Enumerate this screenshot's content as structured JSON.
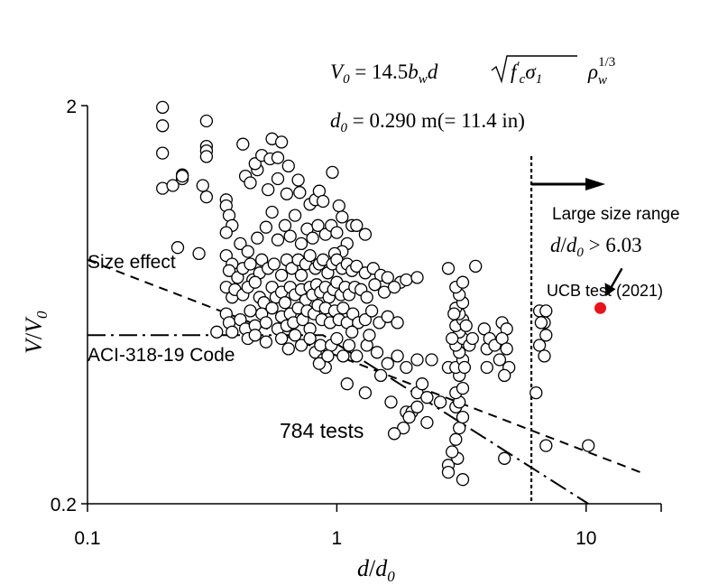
{
  "chart_data": {
    "type": "scatter",
    "x_scale": "log",
    "y_scale": "log",
    "xlim": [
      0.1,
      20
    ],
    "ylim": [
      0.2,
      2
    ],
    "x_ticks": [
      {
        "value": 0.1,
        "label": "0.1"
      },
      {
        "value": 1,
        "label": "1"
      },
      {
        "value": 10,
        "label": "10"
      }
    ],
    "y_ticks": [
      {
        "value": 0.2,
        "label": "0.2"
      },
      {
        "value": 2,
        "label": "2"
      }
    ],
    "xlabel": {
      "main": "d",
      "sep": "/",
      "den": "d",
      "sub": "0"
    },
    "ylabel": {
      "main": "V",
      "sep": "/",
      "den": "V",
      "sub": "0"
    },
    "grid": false,
    "formula_line1": {
      "lhs": "V",
      "lhs_sub": "0",
      "eq": " = 14.5",
      "b": "b",
      "b_sub": "w",
      "d": "d",
      "root": "f",
      "root_prime": "′",
      "root_sub": "c",
      "sigma": "σ",
      "sigma_sub": "1",
      "rho": "ρ",
      "rho_sub": "w",
      "rho_exp": "1/3"
    },
    "formula_line2": {
      "lhs": "d",
      "lhs_sub": "0",
      "rhs": " = 0.290 m(= 11.4 in)"
    },
    "annotations": {
      "large_size_range": "Large size range",
      "threshold": {
        "lhs": "d",
        "sep": "/",
        "den": "d",
        "sub": "0",
        "rhs": " > 6.03"
      },
      "ucb_test": "UCB test (2021)",
      "size_effect": "Size effect",
      "aci_code": "ACI-318-19 Code",
      "test_count": "784 tests"
    },
    "threshold_x": 6.03,
    "ucb_point": {
      "x": 11.4,
      "y": 0.62,
      "color": "#e8141b"
    },
    "size_effect_line": {
      "x": [
        0.1,
        16.5
      ],
      "y": [
        0.82,
        0.24
      ]
    },
    "aci_code_line": {
      "x": [
        0.1,
        0.88,
        10.2
      ],
      "y": [
        0.53,
        0.53,
        0.2
      ]
    },
    "points": [
      [
        0.2,
        1.98
      ],
      [
        0.2,
        1.78
      ],
      [
        0.2,
        1.52
      ],
      [
        0.2,
        1.24
      ],
      [
        0.22,
        1.26
      ],
      [
        0.24,
        1.34
      ],
      [
        0.24,
        1.31
      ],
      [
        0.23,
        0.88
      ],
      [
        0.3,
        1.83
      ],
      [
        0.3,
        1.58
      ],
      [
        0.3,
        1.54
      ],
      [
        0.3,
        1.49
      ],
      [
        0.29,
        1.26
      ],
      [
        0.3,
        1.18
      ],
      [
        0.28,
        0.85
      ],
      [
        0.24,
        1.33
      ],
      [
        0.42,
        1.6
      ],
      [
        0.43,
        1.33
      ],
      [
        0.45,
        1.28
      ],
      [
        0.48,
        1.38
      ],
      [
        0.47,
        1.43
      ],
      [
        0.5,
        1.5
      ],
      [
        0.54,
        1.47
      ],
      [
        0.55,
        1.65
      ],
      [
        0.58,
        1.48
      ],
      [
        0.6,
        1.62
      ],
      [
        0.64,
        1.41
      ],
      [
        0.58,
        1.31
      ],
      [
        0.53,
        1.23
      ],
      [
        0.7,
        1.3
      ],
      [
        0.71,
        1.21
      ],
      [
        0.63,
        1.2
      ],
      [
        0.78,
        1.13
      ],
      [
        0.82,
        1.16
      ],
      [
        0.85,
        1.22
      ],
      [
        0.96,
        1.36
      ],
      [
        0.88,
        1.15
      ],
      [
        1.02,
        1.12
      ],
      [
        1.05,
        1.05
      ],
      [
        1.15,
        1.0
      ],
      [
        1.2,
        1.0
      ],
      [
        1.3,
        0.95
      ],
      [
        0.36,
        1.16
      ],
      [
        0.36,
        1.12
      ],
      [
        0.37,
        1.06
      ],
      [
        0.38,
        1.0
      ],
      [
        0.36,
        0.96
      ],
      [
        0.41,
        0.9
      ],
      [
        0.44,
        0.86
      ],
      [
        0.48,
        0.93
      ],
      [
        0.52,
        0.99
      ],
      [
        0.55,
        1.08
      ],
      [
        0.58,
        0.92
      ],
      [
        0.62,
        1.0
      ],
      [
        0.65,
        0.94
      ],
      [
        0.68,
        1.06
      ],
      [
        0.72,
        0.9
      ],
      [
        0.76,
        0.98
      ],
      [
        0.8,
        0.93
      ],
      [
        0.84,
        1.0
      ],
      [
        0.9,
        0.95
      ],
      [
        0.95,
        1.0
      ],
      [
        1.0,
        0.96
      ],
      [
        1.1,
        0.9
      ],
      [
        1.05,
        0.86
      ],
      [
        0.98,
        0.85
      ],
      [
        0.36,
        0.84
      ],
      [
        0.38,
        0.8
      ],
      [
        0.37,
        0.77
      ],
      [
        0.4,
        0.74
      ],
      [
        0.42,
        0.78
      ],
      [
        0.45,
        0.8
      ],
      [
        0.46,
        0.73
      ],
      [
        0.49,
        0.76
      ],
      [
        0.5,
        0.82
      ],
      [
        0.53,
        0.78
      ],
      [
        0.56,
        0.8
      ],
      [
        0.6,
        0.75
      ],
      [
        0.63,
        0.82
      ],
      [
        0.66,
        0.78
      ],
      [
        0.7,
        0.82
      ],
      [
        0.72,
        0.75
      ],
      [
        0.75,
        0.8
      ],
      [
        0.78,
        0.84
      ],
      [
        0.82,
        0.78
      ],
      [
        0.85,
        0.8
      ],
      [
        0.88,
        0.82
      ],
      [
        0.92,
        0.76
      ],
      [
        0.96,
        0.8
      ],
      [
        1.0,
        0.82
      ],
      [
        1.05,
        0.78
      ],
      [
        1.1,
        0.8
      ],
      [
        1.15,
        0.77
      ],
      [
        1.2,
        0.79
      ],
      [
        1.3,
        0.76
      ],
      [
        1.4,
        0.78
      ],
      [
        1.5,
        0.75
      ],
      [
        1.6,
        0.74
      ],
      [
        1.8,
        0.72
      ],
      [
        1.9,
        0.73
      ],
      [
        2.1,
        0.74
      ],
      [
        0.36,
        0.7
      ],
      [
        0.38,
        0.66
      ],
      [
        0.39,
        0.69
      ],
      [
        0.42,
        0.67
      ],
      [
        0.44,
        0.7
      ],
      [
        0.47,
        0.72
      ],
      [
        0.49,
        0.66
      ],
      [
        0.51,
        0.64
      ],
      [
        0.55,
        0.7
      ],
      [
        0.57,
        0.66
      ],
      [
        0.6,
        0.68
      ],
      [
        0.62,
        0.64
      ],
      [
        0.65,
        0.7
      ],
      [
        0.68,
        0.67
      ],
      [
        0.72,
        0.69
      ],
      [
        0.75,
        0.65
      ],
      [
        0.78,
        0.7
      ],
      [
        0.8,
        0.67
      ],
      [
        0.83,
        0.71
      ],
      [
        0.86,
        0.68
      ],
      [
        0.9,
        0.7
      ],
      [
        0.93,
        0.66
      ],
      [
        0.97,
        0.69
      ],
      [
        1.0,
        0.72
      ],
      [
        1.04,
        0.67
      ],
      [
        1.08,
        0.7
      ],
      [
        1.12,
        0.67
      ],
      [
        1.18,
        0.7
      ],
      [
        1.25,
        0.69
      ],
      [
        1.32,
        0.66
      ],
      [
        1.42,
        0.71
      ],
      [
        1.55,
        0.68
      ],
      [
        1.7,
        0.7
      ],
      [
        0.36,
        0.6
      ],
      [
        0.37,
        0.57
      ],
      [
        0.38,
        0.54
      ],
      [
        0.41,
        0.58
      ],
      [
        0.43,
        0.55
      ],
      [
        0.45,
        0.61
      ],
      [
        0.47,
        0.56
      ],
      [
        0.5,
        0.6
      ],
      [
        0.52,
        0.57
      ],
      [
        0.55,
        0.62
      ],
      [
        0.58,
        0.55
      ],
      [
        0.6,
        0.59
      ],
      [
        0.63,
        0.56
      ],
      [
        0.65,
        0.6
      ],
      [
        0.67,
        0.57
      ],
      [
        0.7,
        0.62
      ],
      [
        0.73,
        0.58
      ],
      [
        0.76,
        0.61
      ],
      [
        0.78,
        0.55
      ],
      [
        0.81,
        0.6
      ],
      [
        0.84,
        0.63
      ],
      [
        0.87,
        0.58
      ],
      [
        0.9,
        0.62
      ],
      [
        0.94,
        0.57
      ],
      [
        0.98,
        0.61
      ],
      [
        1.02,
        0.58
      ],
      [
        1.06,
        0.62
      ],
      [
        1.1,
        0.57
      ],
      [
        1.16,
        0.6
      ],
      [
        1.22,
        0.57
      ],
      [
        1.3,
        0.58
      ],
      [
        1.38,
        0.61
      ],
      [
        1.48,
        0.57
      ],
      [
        1.6,
        0.59
      ],
      [
        1.75,
        0.57
      ],
      [
        0.33,
        0.54
      ],
      [
        0.44,
        0.52
      ],
      [
        0.47,
        0.53
      ],
      [
        0.52,
        0.51
      ],
      [
        0.6,
        0.52
      ],
      [
        0.64,
        0.49
      ],
      [
        0.68,
        0.53
      ],
      [
        0.72,
        0.5
      ],
      [
        0.78,
        0.52
      ],
      [
        0.82,
        0.48
      ],
      [
        0.86,
        0.5
      ],
      [
        0.88,
        0.46
      ],
      [
        0.9,
        0.44
      ],
      [
        0.95,
        0.5
      ],
      [
        1.0,
        0.52
      ],
      [
        1.06,
        0.47
      ],
      [
        1.12,
        0.5
      ],
      [
        1.2,
        0.47
      ],
      [
        1.32,
        0.5
      ],
      [
        1.45,
        0.48
      ],
      [
        1.6,
        0.45
      ],
      [
        1.75,
        0.47
      ],
      [
        1.9,
        0.44
      ],
      [
        2.1,
        0.46
      ],
      [
        1.35,
        0.53
      ],
      [
        1.15,
        0.54
      ],
      [
        0.85,
        0.45
      ],
      [
        0.92,
        0.47
      ],
      [
        1.1,
        0.4
      ],
      [
        1.3,
        0.38
      ],
      [
        1.5,
        0.42
      ],
      [
        1.65,
        0.36
      ],
      [
        1.9,
        0.34
      ],
      [
        2.1,
        0.38
      ],
      [
        2.3,
        0.37
      ],
      [
        2.6,
        0.36
      ],
      [
        2.8,
        0.44
      ],
      [
        2.4,
        0.46
      ],
      [
        2.2,
        0.4
      ],
      [
        2.0,
        0.34
      ],
      [
        2.1,
        0.35
      ],
      [
        1.85,
        0.31
      ],
      [
        1.7,
        0.3
      ],
      [
        1.95,
        0.33
      ],
      [
        2.3,
        0.32
      ],
      [
        2.8,
        0.25
      ],
      [
        2.8,
        0.24
      ],
      [
        3.2,
        0.23
      ],
      [
        3.0,
        0.29
      ],
      [
        3.1,
        0.31
      ],
      [
        3.2,
        0.33
      ],
      [
        3.0,
        0.35
      ],
      [
        3.1,
        0.36
      ],
      [
        3.0,
        0.38
      ],
      [
        3.2,
        0.39
      ],
      [
        3.1,
        0.42
      ],
      [
        3.0,
        0.44
      ],
      [
        3.2,
        0.46
      ],
      [
        3.1,
        0.48
      ],
      [
        3.0,
        0.5
      ],
      [
        3.2,
        0.52
      ],
      [
        3.1,
        0.54
      ],
      [
        3.0,
        0.56
      ],
      [
        3.2,
        0.58
      ],
      [
        3.1,
        0.6
      ],
      [
        3.0,
        0.62
      ],
      [
        3.2,
        0.64
      ],
      [
        3.1,
        0.67
      ],
      [
        3.0,
        0.7
      ],
      [
        3.2,
        0.72
      ],
      [
        2.8,
        0.78
      ],
      [
        3.3,
        0.56
      ],
      [
        3.4,
        0.5
      ],
      [
        2.9,
        0.52
      ],
      [
        2.95,
        0.6
      ],
      [
        3.25,
        0.44
      ],
      [
        3.05,
        0.26
      ],
      [
        2.9,
        0.27
      ],
      [
        3.6,
        0.79
      ],
      [
        3.5,
        0.52
      ],
      [
        4.0,
        0.49
      ],
      [
        3.9,
        0.55
      ],
      [
        4.1,
        0.52
      ],
      [
        4.3,
        0.5
      ],
      [
        4.0,
        0.44
      ],
      [
        4.5,
        0.46
      ],
      [
        4.6,
        0.57
      ],
      [
        4.8,
        0.55
      ],
      [
        4.6,
        0.52
      ],
      [
        4.8,
        0.49
      ],
      [
        4.9,
        0.44
      ],
      [
        4.7,
        0.26
      ],
      [
        4.7,
        0.42
      ],
      [
        6.5,
        0.61
      ],
      [
        6.9,
        0.61
      ],
      [
        6.8,
        0.57
      ],
      [
        6.6,
        0.57
      ],
      [
        6.9,
        0.53
      ],
      [
        6.5,
        0.5
      ],
      [
        6.8,
        0.47
      ],
      [
        6.3,
        0.38
      ],
      [
        6.9,
        0.28
      ],
      [
        10.2,
        0.28
      ]
    ]
  }
}
